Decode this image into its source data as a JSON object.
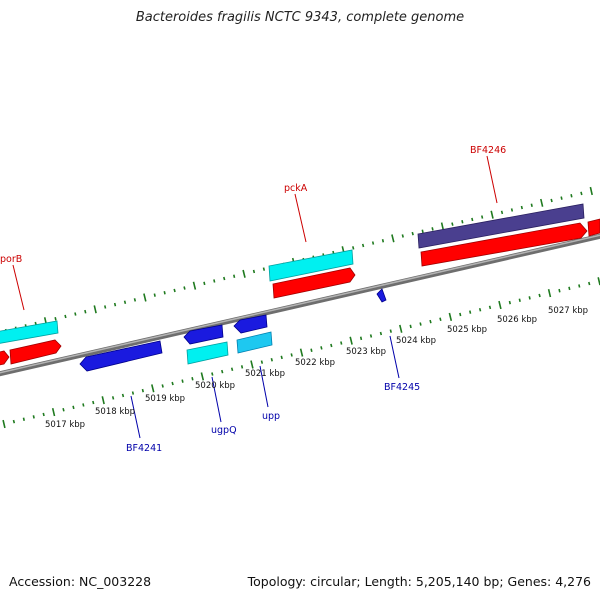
{
  "title": "Bacteroides fragilis NCTC 9343, complete genome",
  "footer": {
    "accession": "Accession: NC_003228",
    "summary": "Topology: circular; Length: 5,205,140 bp; Genes: 4,276"
  },
  "colors": {
    "backbone": "#8c8c8c",
    "tick": "#1f7a1f",
    "cds_forward": "#ff0000",
    "cds_reverse": "#0000ee",
    "rna_cyan": "#00f0f0",
    "rna_lightblue": "#1ec8f0",
    "named_gene": "#4a3f8f",
    "label_red": "#cc0000",
    "label_blue": "#0000aa"
  },
  "ticks": {
    "labels": [
      "5017 kbp",
      "5018 kbp",
      "5019 kbp",
      "5020 kbp",
      "5021 kbp",
      "5022 kbp",
      "5023 kbp",
      "5024 kbp",
      "5025 kbp",
      "5026 kbp",
      "5027 kbp"
    ]
  },
  "gene_labels": {
    "porB": "porB",
    "pckA": "pckA",
    "BF4246": "BF4246",
    "BF4241": "BF4241",
    "ugpQ": "ugpQ",
    "upp": "upp",
    "BF4245": "BF4245"
  }
}
